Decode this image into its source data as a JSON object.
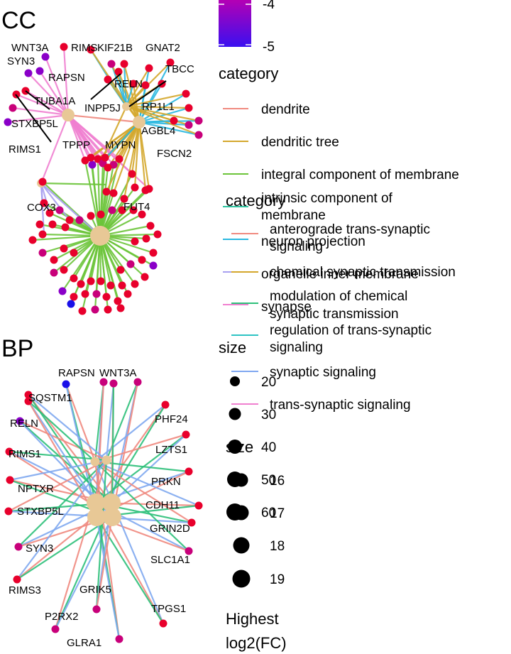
{
  "panels": [
    {
      "id": "cc",
      "title": "CC",
      "gene_labels": [
        "WNT3A",
        "RIMS",
        "KIF21B",
        "GNAT2",
        "SYN3",
        "RAPSN",
        "TBCC",
        "RELN",
        "TUBA1A",
        "INPP5J",
        "RP1L1",
        "STXBP5L",
        "AGBL4",
        "RIMS1",
        "TPPP",
        "MYPN",
        "FSCN2",
        "COX3",
        "FUT4"
      ]
    },
    {
      "id": "bp",
      "title": "BP",
      "gene_labels": [
        "RAPSN",
        "WNT3A",
        "SQSTM1",
        "PHF24",
        "RELN",
        "LZTS1",
        "RIMS1",
        "PRKN",
        "NPTXR",
        "CDH11",
        "STXBP5L",
        "GRIN2D",
        "SYN3",
        "SLC1A1",
        "RIMS3",
        "GRIK5",
        "TPGS1",
        "P2RX2",
        "GLRA1"
      ]
    }
  ],
  "legend": {
    "colorbar_ticks": [
      "-4",
      "-5"
    ],
    "category_blocks": [
      {
        "title": "category",
        "items": [
          {
            "label": "dendrite",
            "color": "#f08a80"
          },
          {
            "label": "dendritic tree",
            "color": "#d4a72c"
          },
          {
            "label": "integral component of membrane",
            "color": "#6cc43a"
          },
          {
            "label": "intrinsic component of membrane",
            "color": "#2ec4a0"
          },
          {
            "label": "neuron projection",
            "color": "#2ab8e0"
          },
          {
            "label": "organelle inner membrane",
            "color": "#a8a0f0"
          },
          {
            "label": "synapse",
            "color": "#f080d0"
          }
        ]
      },
      {
        "title": "category",
        "items": [
          {
            "label": "anterograde trans-synaptic signaling",
            "color": "#f08a80"
          },
          {
            "label": "chemical synaptic transmission",
            "color": "#d4a72c"
          },
          {
            "label": "modulation of chemical synaptic transmission",
            "color": "#2ec07a"
          },
          {
            "label": "regulation of trans-synaptic signaling",
            "color": "#2ec4c4"
          },
          {
            "label": "synaptic signaling",
            "color": "#80a8f0"
          },
          {
            "label": "trans-synaptic signaling",
            "color": "#f080d0"
          }
        ]
      }
    ],
    "size_blocks": [
      {
        "title": "size",
        "items": [
          "20",
          "30",
          "40",
          "50",
          "60"
        ]
      },
      {
        "title": "size",
        "items": [
          "16",
          "17",
          "18",
          "19"
        ]
      }
    ],
    "fc_title_lines": [
      "Highest",
      "log2(FC)"
    ]
  },
  "colors": {
    "category_node": "#e8c896",
    "gene_high": "#e8002c",
    "gene_mid": "#c8007a",
    "gene_low": "#8a00c8",
    "gene_lowest": "#1a10e8"
  }
}
